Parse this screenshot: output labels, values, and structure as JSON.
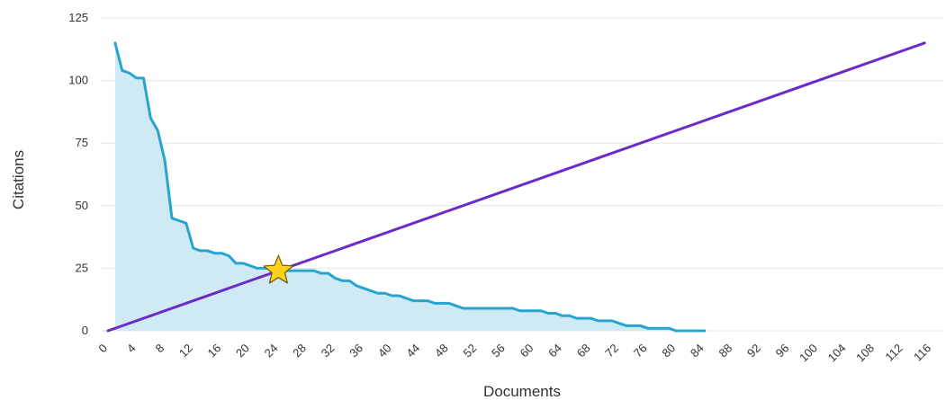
{
  "chart_data": {
    "type": "area",
    "title": "",
    "xlabel": "Documents",
    "ylabel": "Citations",
    "xlim": [
      0,
      117
    ],
    "ylim": [
      0,
      125
    ],
    "x_ticks": [
      0,
      4,
      8,
      12,
      16,
      20,
      24,
      28,
      32,
      36,
      40,
      44,
      48,
      52,
      56,
      60,
      64,
      68,
      72,
      76,
      80,
      84,
      88,
      92,
      96,
      100,
      104,
      108,
      112,
      116
    ],
    "y_ticks": [
      0,
      25,
      50,
      75,
      100,
      125
    ],
    "grid": "horizontal",
    "legend": "none",
    "series": [
      {
        "type": "area",
        "color": "#25a5cf",
        "fill": "#cfeaf4",
        "x": [
          1,
          2,
          3,
          4,
          5,
          6,
          7,
          8,
          9,
          10,
          11,
          12,
          13,
          14,
          15,
          16,
          17,
          18,
          19,
          20,
          21,
          22,
          23,
          24,
          25,
          26,
          27,
          28,
          29,
          30,
          31,
          32,
          33,
          34,
          35,
          36,
          37,
          38,
          39,
          40,
          41,
          42,
          43,
          44,
          45,
          46,
          47,
          48,
          49,
          50,
          51,
          52,
          53,
          54,
          55,
          56,
          57,
          58,
          59,
          60,
          61,
          62,
          63,
          64,
          65,
          66,
          67,
          68,
          69,
          70,
          71,
          72,
          73,
          74,
          75,
          76,
          77,
          78,
          79,
          80,
          81,
          82,
          83,
          84
        ],
        "values": [
          115,
          104,
          103,
          101,
          101,
          85,
          80,
          68,
          45,
          44,
          43,
          33,
          32,
          32,
          31,
          31,
          30,
          27,
          27,
          26,
          25,
          25,
          25,
          25,
          24,
          24,
          24,
          24,
          24,
          23,
          23,
          21,
          20,
          20,
          18,
          17,
          16,
          15,
          15,
          14,
          14,
          13,
          12,
          12,
          12,
          11,
          11,
          11,
          10,
          9,
          9,
          9,
          9,
          9,
          9,
          9,
          9,
          8,
          8,
          8,
          8,
          7,
          7,
          6,
          6,
          5,
          5,
          5,
          4,
          4,
          4,
          3,
          2,
          2,
          2,
          1,
          1,
          1,
          1,
          0,
          0,
          0,
          0,
          0
        ]
      },
      {
        "type": "line",
        "color": "#6b2bc9",
        "x": [
          0,
          115
        ],
        "values": [
          0,
          115
        ]
      }
    ],
    "annotations": [
      {
        "type": "star-marker",
        "x": 24,
        "y": 24,
        "color": "#ffd21a"
      }
    ]
  }
}
